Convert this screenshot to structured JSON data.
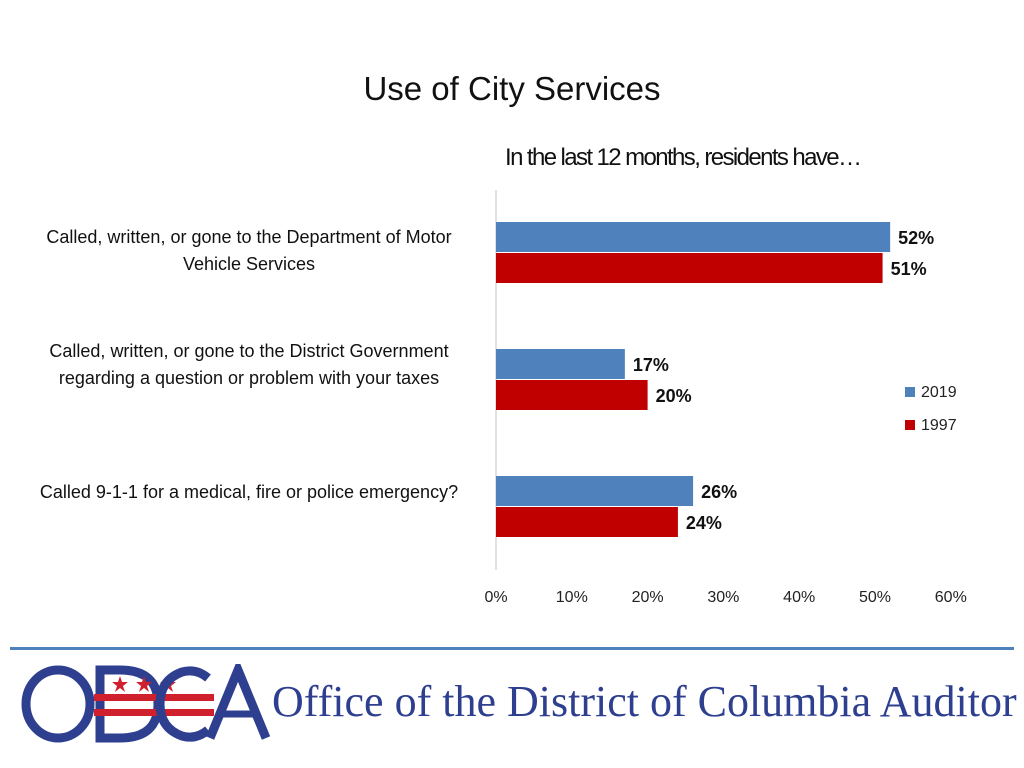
{
  "chart_data": {
    "type": "bar",
    "orientation": "horizontal",
    "title": "Use of City Services",
    "subtitle": "In the last 12 months, residents have…",
    "categories": [
      "Called, written, or gone to the Department of Motor Vehicle Services",
      "Called, written, or gone to the District Government regarding a question or problem with your taxes",
      "Called 9-1-1 for a medical, fire or police emergency?"
    ],
    "series": [
      {
        "name": "2019",
        "values": [
          52,
          17,
          26
        ],
        "color": "#4f81bd"
      },
      {
        "name": "1997",
        "values": [
          51,
          20,
          24
        ],
        "color": "#c00000"
      }
    ],
    "data_labels": [
      [
        "52%",
        "17%",
        "26%"
      ],
      [
        "51%",
        "20%",
        "24%"
      ]
    ],
    "xlim": [
      0,
      60
    ],
    "x_ticks": [
      "0%",
      "10%",
      "20%",
      "30%",
      "40%",
      "50%",
      "60%"
    ],
    "grid": false,
    "legend_position": "right"
  },
  "footer": {
    "logo_text": "ODCA",
    "org_name": "Office of the District of Columbia Auditor"
  }
}
